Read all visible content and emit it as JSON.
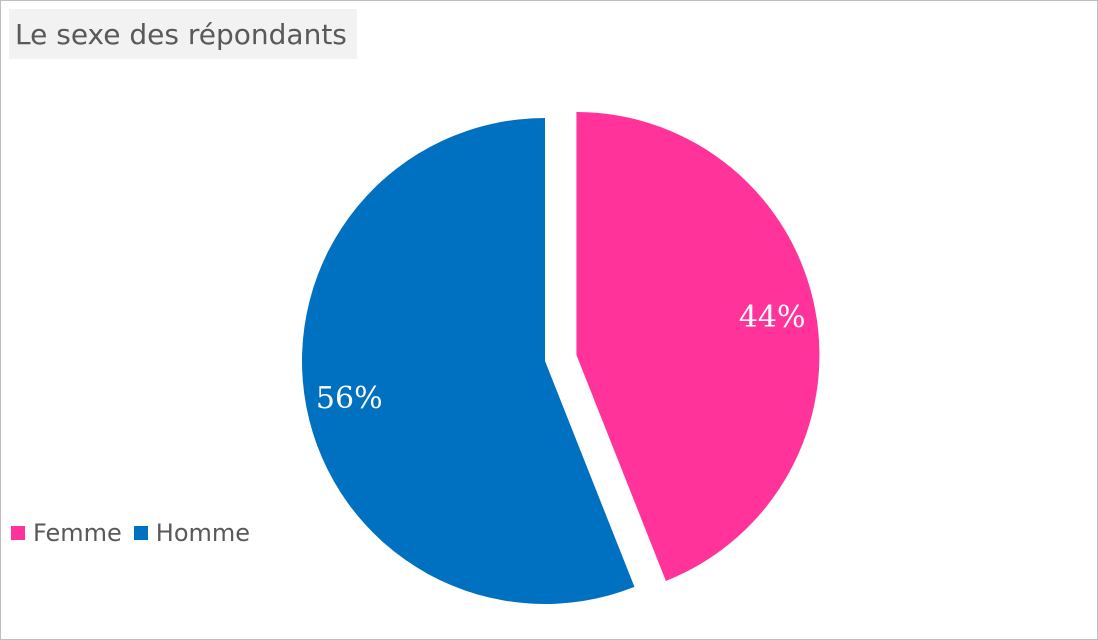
{
  "chart_data": {
    "type": "pie",
    "title": "Le sexe des répondants",
    "legend_position": "bottom-left",
    "slices": [
      {
        "name": "Femme",
        "value": 44,
        "label": "44%",
        "color": "#FF3399",
        "exploded": true
      },
      {
        "name": "Homme",
        "value": 56,
        "label": "56%",
        "color": "#0070C0",
        "exploded": false
      }
    ]
  }
}
